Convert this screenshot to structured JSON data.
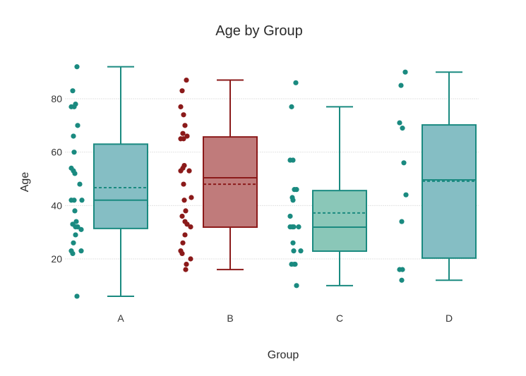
{
  "chart_data": {
    "type": "box",
    "title": "Age by Group",
    "xlabel": "Group",
    "ylabel": "Age",
    "ylim": [
      0,
      95
    ],
    "yticks": [
      20,
      40,
      60,
      80
    ],
    "ytick_labels": [
      "20",
      "40",
      "60",
      "80"
    ],
    "grid": true,
    "categories": [
      "A",
      "B",
      "C",
      "D"
    ],
    "boxes": [
      {
        "name": "A",
        "color": "#1a8a80",
        "fill": "#85bec4",
        "min": 6,
        "q1": 31.4,
        "median": 42,
        "mean": 46.7,
        "q3": 63,
        "max": 92,
        "points": [
          92,
          83,
          77,
          77,
          78,
          70,
          66,
          60,
          54,
          53,
          52,
          48,
          42,
          42,
          42,
          38,
          34,
          33,
          32,
          32,
          31,
          29,
          26,
          23,
          22,
          23,
          6
        ]
      },
      {
        "name": "B",
        "color": "#8b1a1a",
        "fill": "#c07b7b",
        "min": 16,
        "q1": 31.9,
        "median": 50.4,
        "mean": 48,
        "q3": 65.7,
        "max": 87,
        "points": [
          87,
          83,
          77,
          74,
          70,
          66,
          67,
          65,
          65,
          54,
          55,
          53,
          53,
          48,
          43,
          42,
          38,
          36,
          34,
          33,
          32,
          29,
          26,
          23,
          22,
          20,
          18,
          16
        ]
      },
      {
        "name": "C",
        "color": "#1a8a80",
        "fill": "#8ac7b8",
        "min": 10,
        "q1": 22.9,
        "median": 31.9,
        "mean": 37.2,
        "q3": 45.6,
        "max": 77,
        "points": [
          86,
          77,
          57,
          57,
          46,
          46,
          43,
          42,
          36,
          32,
          32,
          32,
          32,
          26,
          23,
          23,
          18,
          18,
          18,
          10
        ]
      },
      {
        "name": "D",
        "color": "#1a8a80",
        "fill": "#85bec4",
        "min": 12,
        "q1": 20.3,
        "median": 49.6,
        "mean": 49.1,
        "q3": 70.2,
        "max": 90,
        "points": [
          90,
          85,
          71,
          69,
          56,
          44,
          34,
          16,
          16,
          12
        ]
      }
    ]
  }
}
